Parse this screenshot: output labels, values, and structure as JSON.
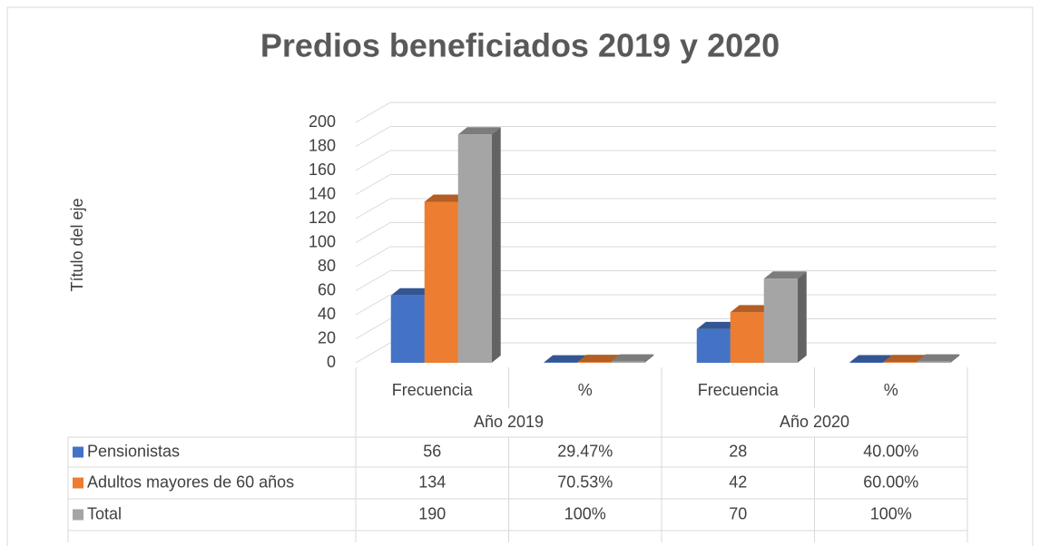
{
  "chart_data": {
    "type": "bar3d",
    "title": "Predios beneficiados 2019 y 2020",
    "y_axis_label": "Título del eje",
    "categories": [
      "Frecuencia",
      "%",
      "Frecuencia",
      "%"
    ],
    "category_groups": [
      "Año 2019",
      "Año 2020"
    ],
    "series": [
      {
        "name": "Pensionistas",
        "color": "#4472c4",
        "values": [
          56,
          0.2947,
          28,
          0.4
        ],
        "value_labels": [
          "56",
          "29.47%",
          "28",
          "40.00%"
        ]
      },
      {
        "name": "Adultos mayores de 60 años",
        "color": "#ed7d31",
        "values": [
          134,
          0.7053,
          42,
          0.6
        ],
        "value_labels": [
          "134",
          "70.53%",
          "42",
          "60.00%"
        ]
      },
      {
        "name": "Total",
        "color": "#a5a5a5",
        "values": [
          190,
          1,
          70,
          1
        ],
        "value_labels": [
          "190",
          "100%",
          "70",
          "100%"
        ]
      }
    ],
    "ylim": [
      0,
      200
    ],
    "yticks": [
      0,
      20,
      40,
      60,
      80,
      100,
      120,
      140,
      160,
      180,
      200
    ],
    "grid": true
  }
}
